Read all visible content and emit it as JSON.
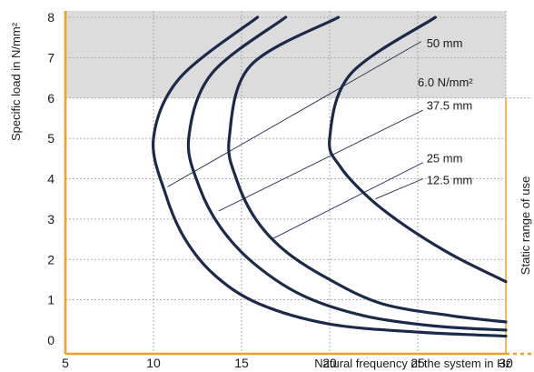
{
  "chart_data": {
    "type": "line",
    "title": "",
    "xlabel": "Natural frequency of the system in Hz",
    "ylabel": "Specific load in N/mm²",
    "right_label": "Static range of use",
    "xlim": [
      5,
      30
    ],
    "ylim": [
      0,
      8
    ],
    "xticks": [
      5,
      10,
      15,
      20,
      25,
      30
    ],
    "yticks": [
      0,
      1,
      2,
      3,
      4,
      5,
      6,
      7,
      8
    ],
    "grid": true,
    "shaded_region": {
      "y_from": 6,
      "y_to": 8,
      "label": "6.0 N/mm²",
      "color": "#dcdcdc"
    },
    "axis_color": "#f0a020",
    "line_color": "#1b2a4a",
    "series": [
      {
        "name": "50 mm",
        "points": [
          [
            15.9,
            8.0
          ],
          [
            11.5,
            6.5
          ],
          [
            10.0,
            5.0
          ],
          [
            10.7,
            3.6
          ],
          [
            11.8,
            2.5
          ],
          [
            13.5,
            1.6
          ],
          [
            16.0,
            0.9
          ],
          [
            20.0,
            0.4
          ],
          [
            25.0,
            0.2
          ],
          [
            30.0,
            0.1
          ]
        ]
      },
      {
        "name": "37.5 mm",
        "points": [
          [
            17.5,
            8.0
          ],
          [
            13.3,
            6.6
          ],
          [
            12.0,
            5.0
          ],
          [
            12.6,
            3.8
          ],
          [
            13.8,
            2.8
          ],
          [
            15.7,
            1.9
          ],
          [
            18.5,
            1.1
          ],
          [
            22.0,
            0.6
          ],
          [
            26.0,
            0.35
          ],
          [
            30.0,
            0.25
          ]
        ]
      },
      {
        "name": "25 mm",
        "points": [
          [
            20.5,
            8.0
          ],
          [
            15.5,
            6.8
          ],
          [
            14.3,
            5.0
          ],
          [
            14.7,
            4.0
          ],
          [
            15.8,
            3.0
          ],
          [
            17.5,
            2.2
          ],
          [
            20.0,
            1.5
          ],
          [
            23.0,
            0.9
          ],
          [
            27.0,
            0.6
          ],
          [
            30.0,
            0.45
          ]
        ]
      },
      {
        "name": "12.5 mm",
        "points": [
          [
            26.0,
            8.0
          ],
          [
            21.2,
            6.6
          ],
          [
            20.0,
            5.0
          ],
          [
            20.6,
            4.3
          ],
          [
            22.3,
            3.5
          ],
          [
            24.4,
            2.8
          ],
          [
            27.0,
            2.1
          ],
          [
            30.0,
            1.45
          ]
        ]
      }
    ],
    "annotations": [
      {
        "text": "50 mm",
        "line": [
          [
            10.8,
            3.8
          ],
          [
            25.2,
            7.4
          ]
        ],
        "text_at": [
          25.5,
          7.35
        ]
      },
      {
        "text": "37.5 mm",
        "line": [
          [
            13.7,
            3.2
          ],
          [
            25.3,
            5.7
          ]
        ],
        "text_at": [
          25.5,
          5.8
        ]
      },
      {
        "text": "25 mm",
        "line": [
          [
            16.7,
            2.5
          ],
          [
            25.3,
            4.4
          ]
        ],
        "text_at": [
          25.5,
          4.5
        ]
      },
      {
        "text": "12.5 mm",
        "line": [
          [
            22.6,
            3.5
          ],
          [
            25.3,
            4.0
          ]
        ],
        "text_at": [
          25.5,
          3.95
        ]
      },
      {
        "text": "6.0 N/mm²",
        "text_at": [
          25.0,
          6.38
        ]
      }
    ]
  }
}
